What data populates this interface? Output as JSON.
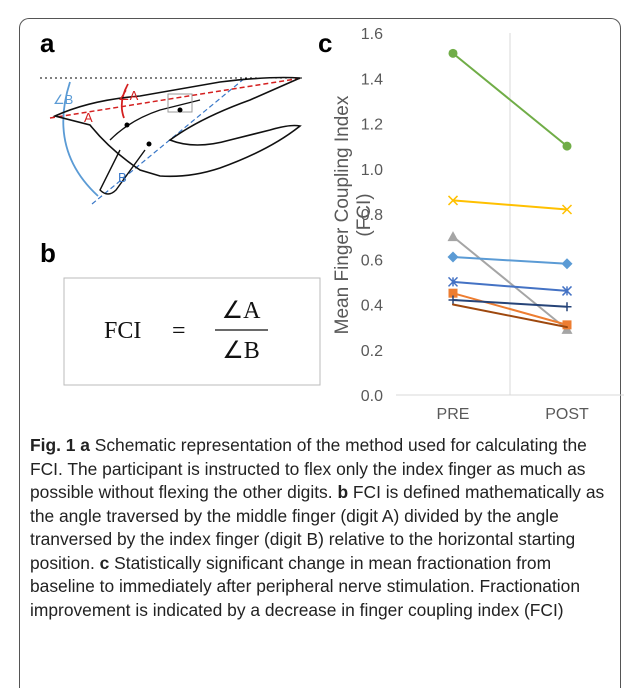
{
  "panel_a": {
    "label": "a",
    "angle_a": "∠A",
    "angle_b": "∠B",
    "digit_a": "A",
    "digit_b": "B"
  },
  "panel_b": {
    "label": "b",
    "lhs": "FCI",
    "equals": "=",
    "numerator": "∠A",
    "denominator": "∠B"
  },
  "panel_c_label": "c",
  "chart_data": {
    "type": "line",
    "ylabel": [
      "Mean Finger Coupling Index",
      "(FCI)"
    ],
    "categories": [
      "PRE",
      "POST"
    ],
    "ylim": [
      0,
      1.6
    ],
    "yticks": [
      {
        "value": 0,
        "label": "0.0"
      },
      0.2,
      0.4,
      0.6,
      0.8,
      {
        "value": 1,
        "label": "1.0"
      },
      1.2,
      1.4,
      1.6
    ],
    "grid": false,
    "series": [
      {
        "color": "#70ad47",
        "marker": "circle",
        "values": [
          1.51,
          1.1
        ]
      },
      {
        "color": "#ffc000",
        "marker": "x",
        "values": [
          0.86,
          0.82
        ]
      },
      {
        "color": "#a5a5a5",
        "marker": "triangle",
        "values": [
          0.7,
          0.29
        ]
      },
      {
        "color": "#5b9bd5",
        "marker": "diamond",
        "values": [
          0.61,
          0.58
        ]
      },
      {
        "color": "#4472c4",
        "marker": "star",
        "values": [
          0.5,
          0.46
        ]
      },
      {
        "color": "#ed7d31",
        "marker": "square",
        "values": [
          0.45,
          0.31
        ]
      },
      {
        "color": "#264478",
        "marker": "plus",
        "values": [
          0.42,
          0.39
        ]
      },
      {
        "color": "#9e480e",
        "marker": "none",
        "values": [
          0.4,
          0.3
        ]
      }
    ]
  },
  "caption": [
    "Fig. 1 a",
    "Schematic representation of the method used for calculating the FCI. The participant is instructed to flex only the index finger as much as possible without flexing the other digits.",
    "b",
    "FCI is defined mathematically as the angle traversed by the middle finger (digit A) divided by the angle tranversed by the index finger (digit B) relative to the horizontal starting position.",
    "c",
    "Statistically significant change in mean fractionation from baseline to immediately after peripheral nerve stimulation. Fractionation improvement is indicated by a decrease in finger coupling index (FCI)"
  ]
}
